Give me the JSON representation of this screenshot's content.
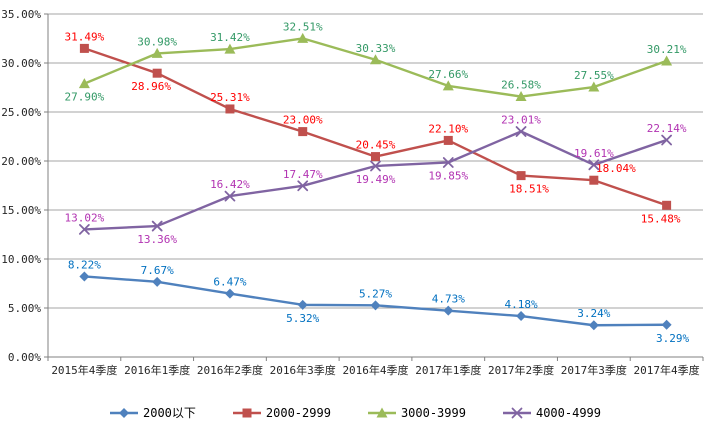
{
  "chart_data": {
    "type": "line",
    "title": "",
    "categories": [
      "2015年4季度",
      "2016年1季度",
      "2016年2季度",
      "2016年3季度",
      "2016年4季度",
      "2017年1季度",
      "2017年2季度",
      "2017年3季度",
      "2017年4季度"
    ],
    "series": [
      {
        "name": "2000以下",
        "line_color": "#4F81BD",
        "label_color": "#0070C0",
        "marker": "diamond",
        "values": [
          8.22,
          7.67,
          6.47,
          5.32,
          5.27,
          4.73,
          4.18,
          3.24,
          3.29
        ],
        "label_side": [
          "above",
          "above",
          "above",
          "below",
          "above",
          "above",
          "above",
          "above",
          "below"
        ],
        "label_dx": [
          0,
          0,
          0,
          0,
          0,
          0,
          0,
          0,
          6
        ]
      },
      {
        "name": "2000-2999",
        "line_color": "#C0504D",
        "label_color": "#FF0000",
        "marker": "square",
        "values": [
          31.49,
          28.96,
          25.31,
          23.0,
          20.45,
          22.1,
          18.51,
          18.04,
          15.48
        ],
        "label_side": [
          "above",
          "below",
          "above",
          "above",
          "above",
          "above",
          "below",
          "above",
          "below"
        ],
        "label_dx": [
          0,
          -6,
          0,
          0,
          0,
          0,
          8,
          22,
          -6
        ]
      },
      {
        "name": "3000-3999",
        "line_color": "#9BBB59",
        "label_color": "#339966",
        "marker": "triangle",
        "values": [
          27.9,
          30.98,
          31.42,
          32.51,
          30.33,
          27.66,
          26.58,
          27.55,
          30.21
        ],
        "label_side": [
          "below",
          "above",
          "above",
          "above",
          "above",
          "above",
          "above",
          "above",
          "above"
        ],
        "label_dx": [
          0,
          0,
          0,
          0,
          0,
          0,
          0,
          0,
          0
        ]
      },
      {
        "name": "4000-4999",
        "line_color": "#8064A2",
        "label_color": "#B233B2",
        "marker": "x",
        "values": [
          13.02,
          13.36,
          16.42,
          17.47,
          19.49,
          19.85,
          23.01,
          19.61,
          22.14
        ],
        "label_side": [
          "above",
          "below",
          "above",
          "above",
          "below",
          "below",
          "above",
          "above",
          "above"
        ],
        "label_dx": [
          0,
          0,
          0,
          0,
          0,
          0,
          0,
          0,
          0
        ]
      }
    ],
    "y_ticks": [
      "35.00%",
      "30.00%",
      "25.00%",
      "20.00%",
      "15.00%",
      "10.00%",
      "5.00%",
      "0.00%"
    ],
    "ylim": [
      0,
      35
    ],
    "y_step": 5,
    "grid": true,
    "legend_position": "bottom",
    "grid_color": "#A6A6A6",
    "axis_color": "#808080",
    "tick_label_color": "#262626"
  }
}
